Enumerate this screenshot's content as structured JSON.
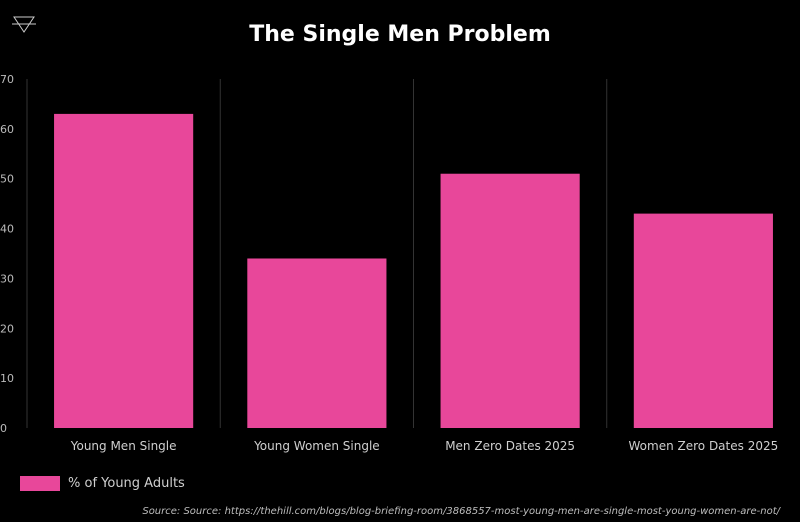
{
  "title": "The Single Men Problem",
  "source": "Source: Source: https://thehill.com/blogs/blog-briefing-room/3868557-most-young-men-are-single-most-young-women-are-not/",
  "logo_icon": "triangle-logo-icon",
  "colors": {
    "bar": "#E8479A",
    "background": "#000000",
    "grid": "#333333",
    "text": "#cfcfcf"
  },
  "chart_data": {
    "type": "bar",
    "title": "The Single Men Problem",
    "categories": [
      "Young Men Single",
      "Young Women Single",
      "Men Zero Dates 2025",
      "Women Zero Dates 2025"
    ],
    "series": [
      {
        "name": "% of Young Adults",
        "values": [
          63,
          34,
          51,
          43
        ]
      }
    ],
    "ylim": [
      0,
      70
    ],
    "yticks": [
      "0",
      "10",
      "20",
      "30",
      "40",
      "50",
      "60",
      "70"
    ],
    "xlabel": "",
    "ylabel": "",
    "grid": "vertical separators",
    "legend": "bottom-left"
  }
}
